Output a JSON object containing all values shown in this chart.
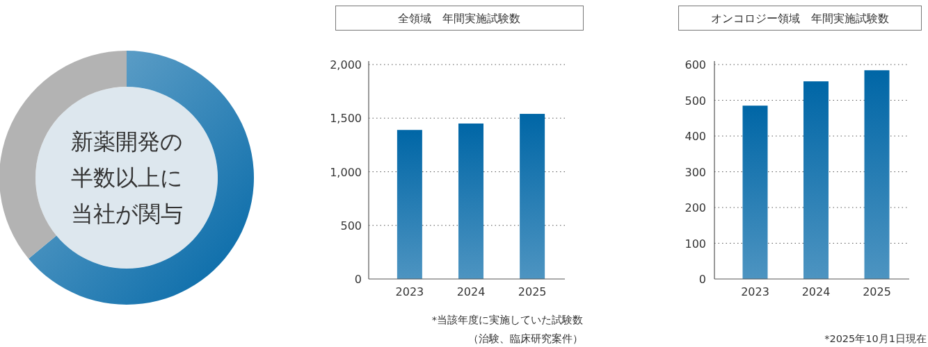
{
  "chart_data": [
    {
      "type": "donut",
      "categories": [
        null,
        null
      ],
      "values": [
        64,
        36
      ],
      "colors": [
        "#0066a6",
        "#b3b3b3"
      ],
      "annotations": [
        "新薬開発の",
        "半数以上に",
        "当社が関与"
      ]
    },
    {
      "type": "bar",
      "title": "全領域　年間実施試験数",
      "categories": [
        "2023",
        "2024",
        "2025"
      ],
      "values": [
        1390,
        1450,
        1540
      ],
      "color": "#0066a6",
      "ylim": [
        0,
        2000
      ],
      "yticks": [
        0,
        {
          "value": 500,
          "label": "500"
        },
        {
          "value": 1000,
          "label": "1,000"
        },
        {
          "value": 1500,
          "label": "1,500"
        },
        {
          "value": 2000,
          "label": "2,000"
        }
      ],
      "grid": "y",
      "annotations": [
        "*当該年度に実施していた試験数",
        "（治験、臨床研究案件）"
      ]
    },
    {
      "type": "bar",
      "title": "オンコロジー領域　年間実施試験数",
      "categories": [
        "2023",
        "2024",
        "2025"
      ],
      "values": [
        485,
        553,
        584
      ],
      "color": "#0066a6",
      "ylim": [
        0,
        600
      ],
      "yticks": [
        0,
        100,
        200,
        300,
        400,
        500,
        600
      ],
      "grid": "y",
      "annotations": [
        "*2025年10月1日現在"
      ]
    }
  ]
}
